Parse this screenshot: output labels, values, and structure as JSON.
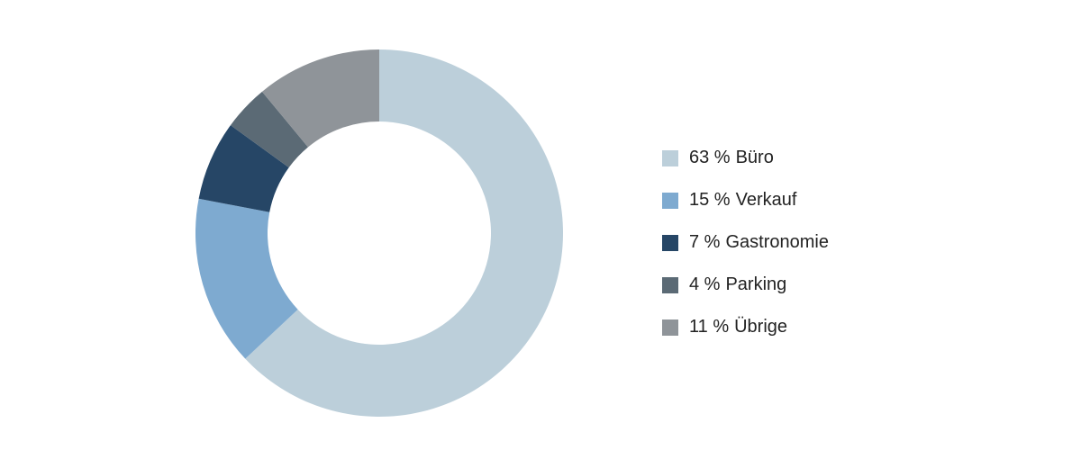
{
  "chart_data": {
    "type": "donut",
    "categories": [
      "Büro",
      "Verkauf",
      "Gastronomie",
      "Parking",
      "Übrige"
    ],
    "values": [
      63,
      15,
      7,
      4,
      11
    ],
    "value_labels": [
      "63 %",
      "15 %",
      "7 %",
      "4 %",
      "11 %"
    ],
    "colors": [
      "#bccfda",
      "#7eaad0",
      "#264666",
      "#5b6a75",
      "#8f9499"
    ],
    "legend": "right"
  }
}
